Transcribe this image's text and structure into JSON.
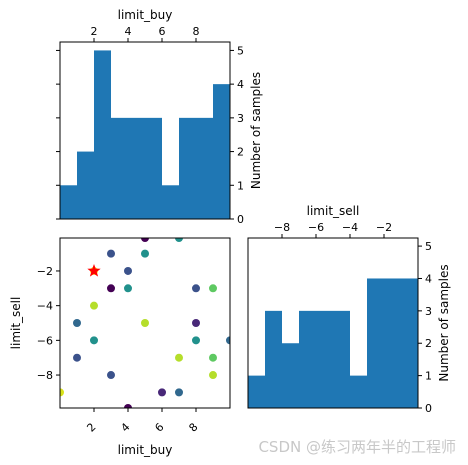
{
  "chart_data": [
    {
      "type": "bar",
      "panel": "top-left histogram",
      "xlabel": "limit_buy",
      "ylabel": "Number of samples",
      "xlim": [
        0.0,
        10.0
      ],
      "ylim": [
        0,
        5.25
      ],
      "x_ticks": [
        2,
        4,
        6,
        8
      ],
      "y_ticks": [
        0,
        1,
        2,
        3,
        4,
        5
      ],
      "bin_edges": [
        0,
        1,
        2,
        3,
        4,
        5,
        6,
        7,
        8,
        9,
        10
      ],
      "values": [
        1,
        2,
        5,
        3,
        3,
        3,
        1,
        3,
        3,
        4
      ],
      "color": "#1f77b4",
      "xaxis_position": "top",
      "yaxis_position": "right"
    },
    {
      "type": "scatter",
      "panel": "bottom-left scatter",
      "xlabel": "limit_buy",
      "ylabel": "limit_sell",
      "xlim": [
        0.0,
        10.0
      ],
      "ylim": [
        -9.9,
        -0.1
      ],
      "x_ticks": [
        2,
        4,
        6,
        8
      ],
      "y_ticks": [
        -2,
        -4,
        -6,
        -8
      ],
      "points": [
        {
          "x": 3,
          "y": -1,
          "color": "#3b528b"
        },
        {
          "x": 5,
          "y": -0.1,
          "color": "#440154"
        },
        {
          "x": 7,
          "y": -0.1,
          "color": "#21918c"
        },
        {
          "x": 5,
          "y": -1,
          "color": "#21918c"
        },
        {
          "x": 4,
          "y": -2,
          "color": "#3b528b"
        },
        {
          "x": 2,
          "y": -2,
          "color": "#fde725"
        },
        {
          "x": 3,
          "y": -3,
          "color": "#440154"
        },
        {
          "x": 4,
          "y": -3,
          "color": "#21918c"
        },
        {
          "x": 8,
          "y": -3,
          "color": "#3b528b"
        },
        {
          "x": 9,
          "y": -3,
          "color": "#5ec962"
        },
        {
          "x": 2,
          "y": -4,
          "color": "#b5de2b"
        },
        {
          "x": 1,
          "y": -5,
          "color": "#31688e"
        },
        {
          "x": 5,
          "y": -5,
          "color": "#b5de2b"
        },
        {
          "x": 8,
          "y": -5,
          "color": "#482878"
        },
        {
          "x": 2,
          "y": -6,
          "color": "#21918c"
        },
        {
          "x": 8,
          "y": -6,
          "color": "#21918c"
        },
        {
          "x": 10,
          "y": -6,
          "color": "#31688e"
        },
        {
          "x": 1,
          "y": -7,
          "color": "#3b528b"
        },
        {
          "x": 7,
          "y": -7,
          "color": "#b5de2b"
        },
        {
          "x": 9,
          "y": -7,
          "color": "#5ec962"
        },
        {
          "x": 3,
          "y": -8,
          "color": "#3b528b"
        },
        {
          "x": 9,
          "y": -8,
          "color": "#b5de2b"
        },
        {
          "x": 0,
          "y": -9,
          "color": "#d8e219"
        },
        {
          "x": 6,
          "y": -9,
          "color": "#482878"
        },
        {
          "x": 7,
          "y": -9,
          "color": "#31688e"
        },
        {
          "x": 4,
          "y": -9.9,
          "color": "#440154"
        }
      ],
      "best_point": {
        "x": 2,
        "y": -2,
        "marker": "star",
        "color": "#ff0000"
      },
      "xticklabel_rotation": -45
    },
    {
      "type": "bar",
      "panel": "bottom-right histogram",
      "xlabel": "limit_sell",
      "ylabel": "Number of samples",
      "xlim": [
        -10.0,
        0.0
      ],
      "ylim": [
        0,
        5.25
      ],
      "x_ticks": [
        -8,
        -6,
        -4,
        -2
      ],
      "y_ticks": [
        0,
        1,
        2,
        3,
        4,
        5
      ],
      "bin_edges": [
        -10,
        -9,
        -8,
        -7,
        -6,
        -5,
        -4,
        -3,
        -2,
        -1,
        0
      ],
      "values": [
        1,
        3,
        2,
        3,
        3,
        3,
        1,
        4,
        4,
        4
      ],
      "color": "#1f77b4",
      "xaxis_position": "top",
      "yaxis_position": "right"
    }
  ],
  "watermark": "CSDN @练习两年半的工程师"
}
